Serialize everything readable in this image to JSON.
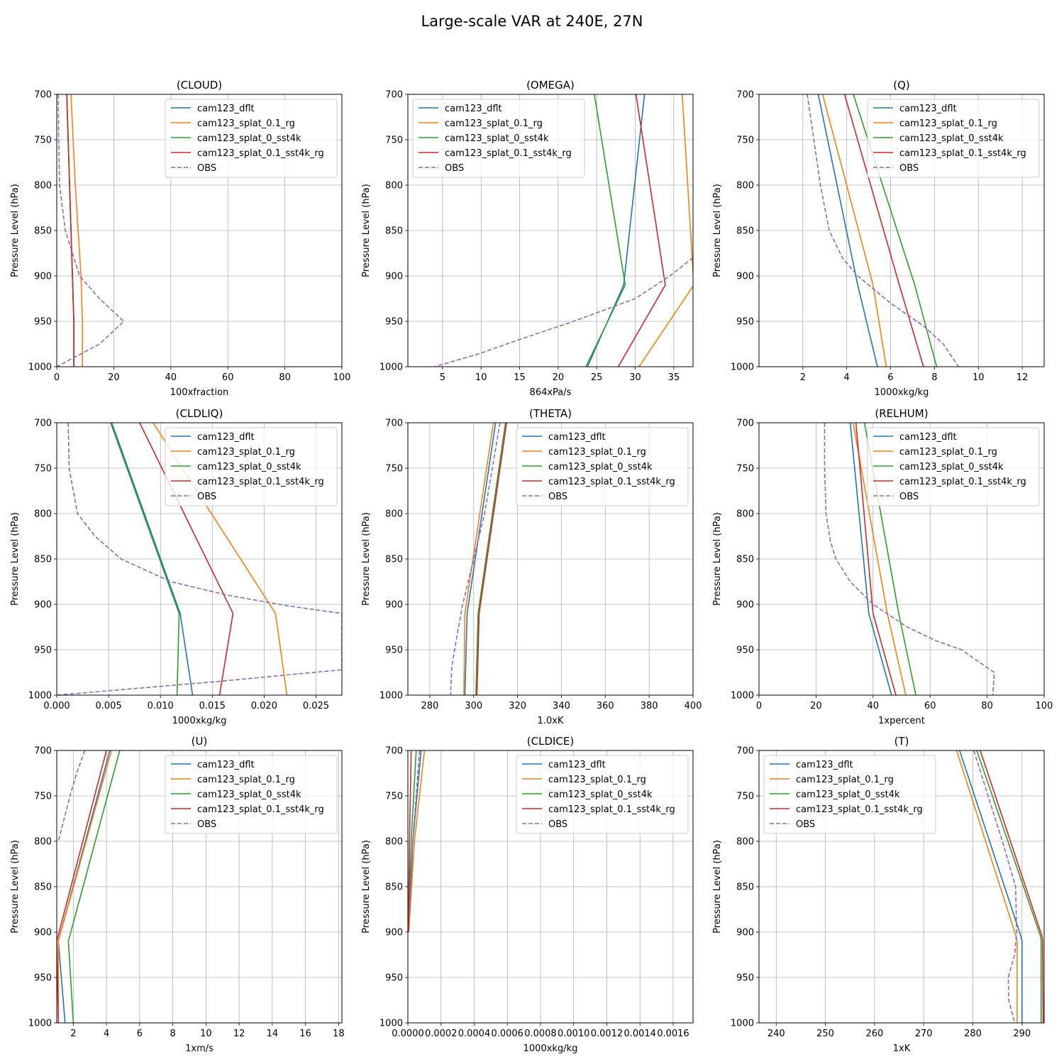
{
  "figure": {
    "suptitle": "Large-scale VAR at 240E, 27N"
  },
  "legend_labels": [
    "cam123_dflt",
    "cam123_splat_0.1_rg",
    "cam123_splat_0_sst4k",
    "cam123_splat_0.1_sst4k_rg",
    "OBS"
  ],
  "series_colors": [
    "#1f77b4",
    "#ff7f0e",
    "#2ca02c",
    "#d62728",
    "#9467bd"
  ],
  "ylabel": "Pressure Level (hPa)",
  "chart_data": [
    {
      "type": "line",
      "title": "(CLOUD)",
      "xlabel": "100xfraction",
      "xlim": [
        0,
        100
      ],
      "ylim": [
        1000,
        700
      ],
      "xticks": [
        0,
        20,
        40,
        60,
        80,
        100
      ],
      "xticklabels": [
        "0",
        "20",
        "40",
        "60",
        "80",
        "100"
      ],
      "yticks": [
        700,
        750,
        800,
        850,
        900,
        950,
        1000
      ],
      "yticklabels": [
        "700",
        "750",
        "800",
        "850",
        "900",
        "950",
        "1000"
      ],
      "legend": "upper right",
      "grid": true,
      "series": [
        {
          "name": "cam123_dflt",
          "x": [
            3.5,
            4.5,
            5.5,
            6,
            6
          ],
          "y": [
            700,
            800,
            900,
            950,
            1000
          ]
        },
        {
          "name": "cam123_splat_0.1_rg",
          "x": [
            5,
            6.5,
            8.5,
            9,
            9
          ],
          "y": [
            700,
            800,
            900,
            950,
            1000
          ]
        },
        {
          "name": "cam123_splat_0_sst4k",
          "x": [
            3.5,
            4.5,
            5.5,
            6,
            6
          ],
          "y": [
            700,
            800,
            900,
            950,
            1000
          ]
        },
        {
          "name": "cam123_splat_0.1_sst4k_rg",
          "x": [
            3.5,
            4.5,
            5.5,
            6,
            6
          ],
          "y": [
            700,
            800,
            900,
            950,
            1000
          ]
        },
        {
          "name": "OBS",
          "x": [
            0.5,
            0.7,
            1,
            3,
            8,
            15,
            23.5,
            15,
            0
          ],
          "y": [
            700,
            750,
            800,
            850,
            900,
            925,
            950,
            975,
            1000
          ],
          "dashed": true
        }
      ]
    },
    {
      "type": "line",
      "title": "(OMEGA)",
      "xlabel": "864xPa/s",
      "xlim": [
        0.5,
        37.5
      ],
      "ylim": [
        1000,
        700
      ],
      "xticks": [
        5,
        10,
        15,
        20,
        25,
        30,
        35
      ],
      "xticklabels": [
        "5",
        "10",
        "15",
        "20",
        "25",
        "30",
        "35"
      ],
      "yticks": [
        700,
        750,
        800,
        850,
        900,
        950,
        1000
      ],
      "yticklabels": [
        "700",
        "750",
        "800",
        "850",
        "900",
        "950",
        "1000"
      ],
      "legend": "upper left",
      "grid": true,
      "series": [
        {
          "name": "cam123_dflt",
          "x": [
            31.2,
            28.5,
            23.8
          ],
          "y": [
            700,
            910,
            1000
          ]
        },
        {
          "name": "cam123_splat_0.1_rg",
          "x": [
            36.1,
            37.6,
            30.5
          ],
          "y": [
            700,
            910,
            1000
          ]
        },
        {
          "name": "cam123_splat_0_sst4k",
          "x": [
            24.7,
            28.7,
            23.6
          ],
          "y": [
            700,
            910,
            1000
          ]
        },
        {
          "name": "cam123_splat_0.1_sst4k_rg",
          "x": [
            30.1,
            33.9,
            27.8
          ],
          "y": [
            700,
            910,
            1000
          ]
        },
        {
          "name": "OBS",
          "x": [
            37.5,
            34.5,
            30,
            22,
            15,
            10,
            4
          ],
          "y": [
            880,
            900,
            925,
            950,
            970,
            985,
            1000
          ],
          "dashed": true
        }
      ]
    },
    {
      "type": "line",
      "title": "(Q)",
      "xlabel": "1000xkg/kg",
      "xlim": [
        0,
        13
      ],
      "ylim": [
        1000,
        700
      ],
      "xticks": [
        2,
        4,
        6,
        8,
        10,
        12
      ],
      "xticklabels": [
        "2",
        "4",
        "6",
        "8",
        "10",
        "12"
      ],
      "yticks": [
        700,
        750,
        800,
        850,
        900,
        950,
        1000
      ],
      "yticklabels": [
        "700",
        "750",
        "800",
        "850",
        "900",
        "950",
        "1000"
      ],
      "legend": "upper right",
      "grid": true,
      "series": [
        {
          "name": "cam123_dflt",
          "x": [
            2.7,
            4.5,
            5.4
          ],
          "y": [
            700,
            910,
            1000
          ]
        },
        {
          "name": "cam123_splat_0.1_rg",
          "x": [
            2.9,
            5.2,
            5.8
          ],
          "y": [
            700,
            910,
            1000
          ]
        },
        {
          "name": "cam123_splat_0_sst4k",
          "x": [
            4.3,
            7.1,
            8.1
          ],
          "y": [
            700,
            910,
            1000
          ]
        },
        {
          "name": "cam123_splat_0.1_sst4k_rg",
          "x": [
            3.9,
            6.4,
            7.5
          ],
          "y": [
            700,
            910,
            1000
          ]
        },
        {
          "name": "OBS",
          "x": [
            2.2,
            2.5,
            2.8,
            3.2,
            3.8,
            4.5,
            6,
            7.5,
            8.4,
            9.1
          ],
          "y": [
            700,
            750,
            800,
            850,
            880,
            900,
            930,
            955,
            975,
            1000
          ],
          "dashed": true
        }
      ]
    },
    {
      "type": "line",
      "title": "(CLDLIQ)",
      "xlabel": "1000xkg/kg",
      "xlim": [
        0,
        0.0275
      ],
      "ylim": [
        1000,
        700
      ],
      "xticks": [
        0,
        0.005,
        0.01,
        0.015,
        0.02,
        0.025
      ],
      "xticklabels": [
        "0.000",
        "0.005",
        "0.010",
        "0.015",
        "0.020",
        "0.025"
      ],
      "yticks": [
        700,
        750,
        800,
        850,
        900,
        950,
        1000
      ],
      "yticklabels": [
        "700",
        "750",
        "800",
        "850",
        "900",
        "950",
        "1000"
      ],
      "legend": "upper right",
      "grid": true,
      "series": [
        {
          "name": "cam123_dflt",
          "x": [
            0.0053,
            0.0119,
            0.0131
          ],
          "y": [
            700,
            910,
            1000
          ]
        },
        {
          "name": "cam123_splat_0.1_rg",
          "x": [
            0.0093,
            0.0211,
            0.0222
          ],
          "y": [
            700,
            910,
            1000
          ]
        },
        {
          "name": "cam123_splat_0_sst4k",
          "x": [
            0.0052,
            0.0118,
            0.0116
          ],
          "y": [
            700,
            910,
            1000
          ]
        },
        {
          "name": "cam123_splat_0.1_sst4k_rg",
          "x": [
            0.008,
            0.017,
            0.0157
          ],
          "y": [
            700,
            910,
            1000
          ]
        },
        {
          "name": "OBS",
          "x": [
            0.0011,
            0.0012,
            0.002,
            0.0037,
            0.0062,
            0.011,
            0.0165,
            0.0225,
            0.0275,
            0.0275,
            0.0155,
            0
          ],
          "y": [
            700,
            750,
            800,
            825,
            850,
            875,
            890,
            902,
            910,
            972,
            985,
            1000
          ],
          "dashed": true
        }
      ]
    },
    {
      "type": "line",
      "title": "(THETA)",
      "xlabel": "1.0xK",
      "xlim": [
        270,
        400
      ],
      "ylim": [
        1000,
        700
      ],
      "xticks": [
        280,
        300,
        320,
        340,
        360,
        380,
        400
      ],
      "xticklabels": [
        "280",
        "300",
        "320",
        "340",
        "360",
        "380",
        "400"
      ],
      "yticks": [
        700,
        750,
        800,
        850,
        900,
        950,
        1000
      ],
      "yticklabels": [
        "700",
        "750",
        "800",
        "850",
        "900",
        "950",
        "1000"
      ],
      "legend": "upper right",
      "grid": true,
      "series": [
        {
          "name": "cam123_dflt",
          "x": [
            310,
            297,
            296
          ],
          "y": [
            700,
            910,
            1000
          ]
        },
        {
          "name": "cam123_splat_0.1_rg",
          "x": [
            309,
            296,
            295.5
          ],
          "y": [
            700,
            910,
            1000
          ]
        },
        {
          "name": "cam123_splat_0_sst4k",
          "x": [
            314.5,
            302,
            301
          ],
          "y": [
            700,
            910,
            1000
          ]
        },
        {
          "name": "cam123_splat_0.1_sst4k_rg",
          "x": [
            315,
            302.5,
            301.5
          ],
          "y": [
            700,
            910,
            1000
          ]
        },
        {
          "name": "OBS",
          "x": [
            312,
            305,
            300,
            295,
            292,
            290,
            289.5
          ],
          "y": [
            700,
            800,
            850,
            900,
            940,
            970,
            1000
          ],
          "dashed": true
        }
      ]
    },
    {
      "type": "line",
      "title": "(RELHUM)",
      "xlabel": "1xpercent",
      "xlim": [
        0,
        100
      ],
      "ylim": [
        1000,
        700
      ],
      "xticks": [
        0,
        20,
        40,
        60,
        80,
        100
      ],
      "xticklabels": [
        "0",
        "20",
        "40",
        "60",
        "80",
        "100"
      ],
      "yticks": [
        700,
        750,
        800,
        850,
        900,
        950,
        1000
      ],
      "yticklabels": [
        "700",
        "750",
        "800",
        "850",
        "900",
        "950",
        "1000"
      ],
      "legend": "upper right",
      "grid": true,
      "series": [
        {
          "name": "cam123_dflt",
          "x": [
            32,
            38.5,
            46.5
          ],
          "y": [
            700,
            910,
            1000
          ]
        },
        {
          "name": "cam123_splat_0.1_rg",
          "x": [
            33,
            45,
            51.5
          ],
          "y": [
            700,
            910,
            1000
          ]
        },
        {
          "name": "cam123_splat_0_sst4k",
          "x": [
            37,
            49,
            55
          ],
          "y": [
            700,
            910,
            1000
          ]
        },
        {
          "name": "cam123_splat_0.1_sst4k_rg",
          "x": [
            34,
            40,
            48
          ],
          "y": [
            700,
            910,
            1000
          ]
        },
        {
          "name": "OBS",
          "x": [
            23,
            23,
            23.5,
            25,
            27,
            32,
            40,
            52,
            62,
            71,
            82.5,
            82
          ],
          "y": [
            700,
            750,
            800,
            830,
            850,
            875,
            900,
            925,
            940,
            950,
            975,
            1000
          ],
          "dashed": true
        }
      ]
    },
    {
      "type": "line",
      "title": "(U)",
      "xlabel": "1xm/s",
      "xlim": [
        1,
        18.2
      ],
      "ylim": [
        1000,
        700
      ],
      "xticks": [
        2,
        4,
        6,
        8,
        10,
        12,
        14,
        16,
        18
      ],
      "xticklabels": [
        "2",
        "4",
        "6",
        "8",
        "10",
        "12",
        "14",
        "16",
        "18"
      ],
      "yticks": [
        700,
        750,
        800,
        850,
        900,
        950,
        1000
      ],
      "yticklabels": [
        "700",
        "750",
        "800",
        "850",
        "900",
        "950",
        "1000"
      ],
      "legend": "upper right",
      "grid": true,
      "series": [
        {
          "name": "cam123_dflt",
          "x": [
            4.2,
            1.1,
            1.5
          ],
          "y": [
            700,
            910,
            1000
          ]
        },
        {
          "name": "cam123_splat_0.1_rg",
          "x": [
            4.3,
            1.1,
            1.1
          ],
          "y": [
            700,
            910,
            1000
          ]
        },
        {
          "name": "cam123_splat_0_sst4k",
          "x": [
            4.8,
            1.7,
            2
          ],
          "y": [
            700,
            910,
            1000
          ]
        },
        {
          "name": "cam123_splat_0.1_sst4k_rg",
          "x": [
            4,
            1,
            1.1
          ],
          "y": [
            700,
            910,
            1000
          ]
        },
        {
          "name": "OBS",
          "x": [
            2.7,
            2.2,
            1.8,
            1.1
          ],
          "y": [
            700,
            725,
            750,
            800
          ],
          "dashed": true
        }
      ]
    },
    {
      "type": "line",
      "title": "(CLDICE)",
      "xlabel": "1000xkg/kg",
      "xlim": [
        0,
        0.00172
      ],
      "ylim": [
        1000,
        700
      ],
      "xticks": [
        0,
        0.0002,
        0.0004,
        0.0006,
        0.0008,
        0.001,
        0.0012,
        0.0014,
        0.0016
      ],
      "xticklabels": [
        "0.0000",
        "0.0002",
        "0.0004",
        "0.0006",
        "0.0008",
        "0.0010",
        "0.0012",
        "0.0014",
        "0.0016"
      ],
      "yticks": [
        700,
        750,
        800,
        850,
        900,
        950,
        1000
      ],
      "yticklabels": [
        "700",
        "750",
        "800",
        "850",
        "900",
        "950",
        "1000"
      ],
      "legend": "upper right",
      "grid": true,
      "series": [
        {
          "name": "cam123_dflt",
          "x": [
            8e-05,
            3e-05,
            5e-06
          ],
          "y": [
            700,
            800,
            900
          ]
        },
        {
          "name": "cam123_splat_0.1_rg",
          "x": [
            0.0001,
            4e-05,
            5e-06
          ],
          "y": [
            700,
            800,
            900
          ]
        },
        {
          "name": "cam123_splat_0_sst4k",
          "x": [
            5e-05,
            2e-05,
            3e-06
          ],
          "y": [
            700,
            800,
            900
          ]
        },
        {
          "name": "cam123_splat_0.1_sst4k_rg",
          "x": [
            2e-05,
            1e-05,
            3e-06
          ],
          "y": [
            700,
            800,
            900
          ]
        },
        {
          "name": "OBS",
          "x": [
            7e-05,
            3e-05,
            1e-05
          ],
          "y": [
            700,
            800,
            880
          ],
          "dashed": true
        }
      ]
    },
    {
      "type": "line",
      "title": "(T)",
      "xlabel": "1xK",
      "xlim": [
        236.5,
        294.5
      ],
      "ylim": [
        1000,
        700
      ],
      "xticks": [
        240,
        250,
        260,
        270,
        280,
        290
      ],
      "xticklabels": [
        "240",
        "250",
        "260",
        "270",
        "280",
        "290"
      ],
      "yticks": [
        700,
        750,
        800,
        850,
        900,
        950,
        1000
      ],
      "yticklabels": [
        "700",
        "750",
        "800",
        "850",
        "900",
        "950",
        "1000"
      ],
      "legend": "upper left",
      "grid": true,
      "series": [
        {
          "name": "cam123_dflt",
          "x": [
            277.3,
            289.8,
            290,
            290
          ],
          "y": [
            700,
            905,
            910,
            1000
          ]
        },
        {
          "name": "cam123_splat_0.1_rg",
          "x": [
            276.7,
            288.8,
            289,
            289
          ],
          "y": [
            700,
            905,
            910,
            1000
          ]
        },
        {
          "name": "cam123_splat_0_sst4k",
          "x": [
            280.8,
            293.8,
            293.9,
            293.9
          ],
          "y": [
            700,
            905,
            910,
            1000
          ]
        },
        {
          "name": "cam123_splat_0.1_sst4k_rg",
          "x": [
            281.5,
            294.1,
            294.2,
            294.3
          ],
          "y": [
            700,
            905,
            910,
            1000
          ]
        },
        {
          "name": "OBS",
          "x": [
            280.2,
            286,
            288.7,
            288.9,
            288.5,
            287.2,
            287.3,
            288.5
          ],
          "y": [
            700,
            800,
            850,
            900,
            925,
            950,
            975,
            1000
          ],
          "dashed": true
        }
      ]
    }
  ]
}
